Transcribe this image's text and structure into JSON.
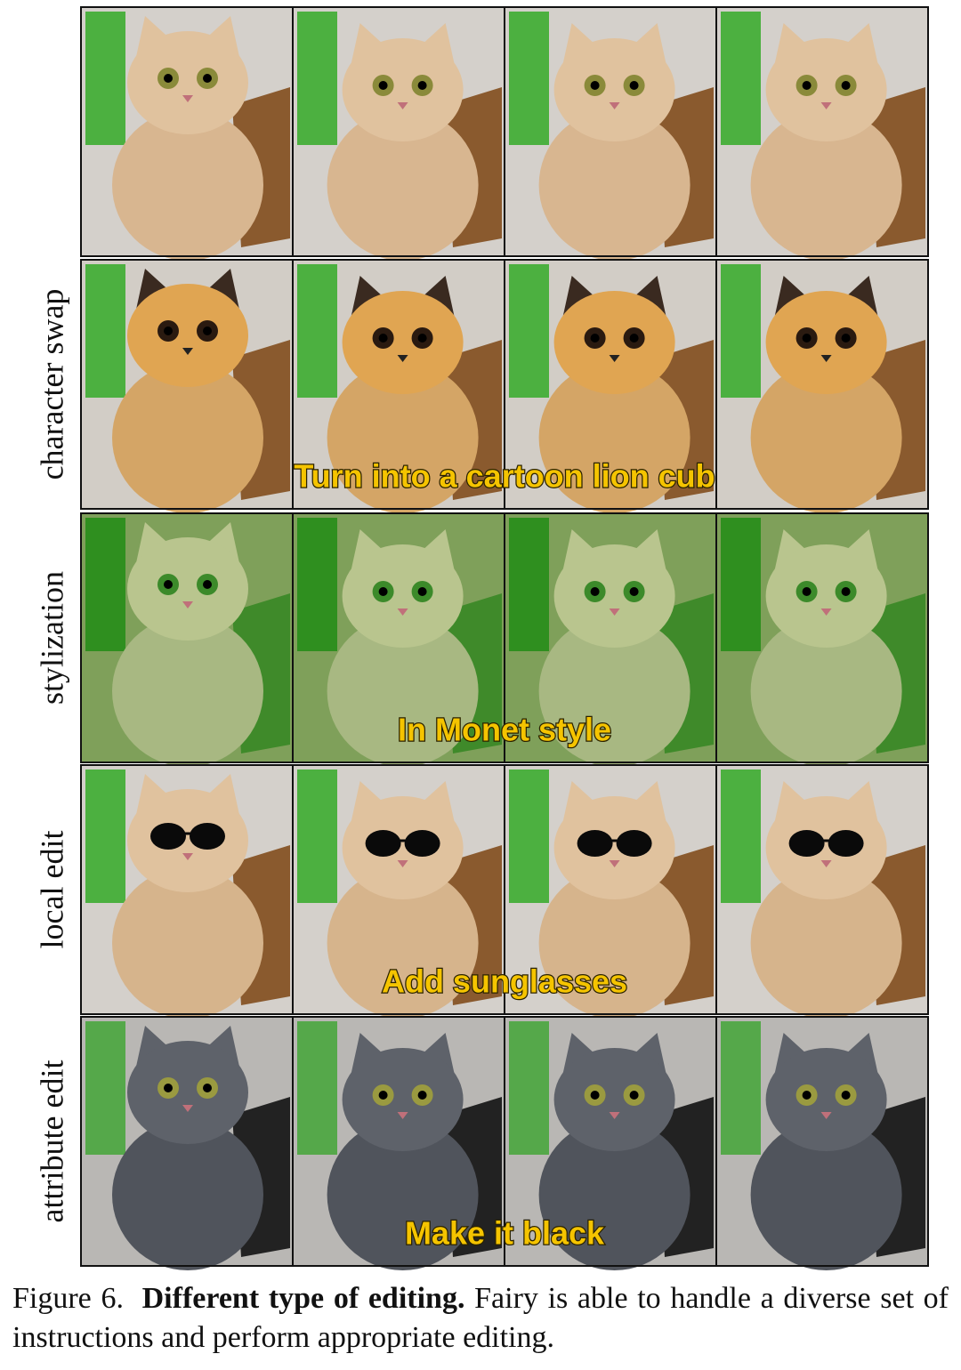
{
  "edited_rows": [
    {
      "label": "character swap",
      "instruction": "Turn into a cartoon lion cub"
    },
    {
      "label": "stylization",
      "instruction": "In Monet style"
    },
    {
      "label": "local edit",
      "instruction": "Add sunglasses"
    },
    {
      "label": "attribute edit",
      "instruction": "Make it black"
    }
  ],
  "caption": {
    "figure": "Figure 6.",
    "title": "Different type of editing.",
    "text": "Fairy is able to handle a diverse set of instructions and perform appropriate editing."
  }
}
